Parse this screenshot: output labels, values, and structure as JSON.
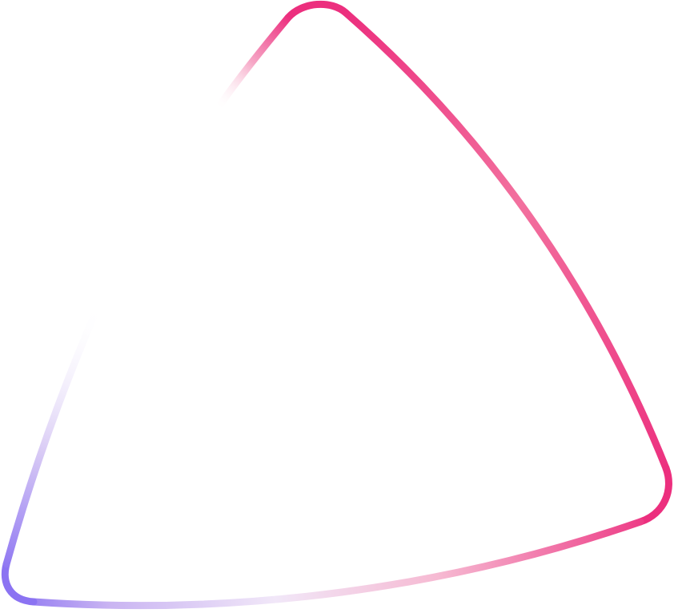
{
  "shape": {
    "name": "rounded-triangle-outline",
    "colors": {
      "pink_strong": "#EC2F7E",
      "pink_mid": "#F2709E",
      "pink_soft": "#F6B9D2",
      "lavender_pale": "#F1E7F8",
      "lavender_mid": "#C9B4F2",
      "violet": "#8B73F2"
    }
  }
}
